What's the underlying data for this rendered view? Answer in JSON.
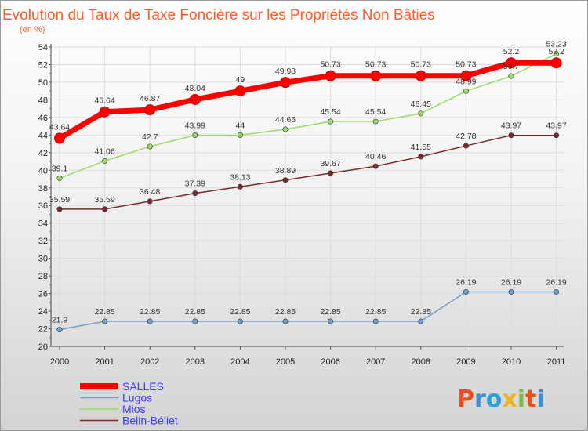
{
  "chart_data": {
    "type": "line",
    "title": "Evolution du Taux de Taxe Foncière sur les Propriétés Non Bâties",
    "subtitle": "(en %)",
    "xlabel": "",
    "ylabel": "",
    "x": [
      "2000",
      "2001",
      "2002",
      "2003",
      "2004",
      "2005",
      "2006",
      "2007",
      "2008",
      "2009",
      "2010",
      "2011"
    ],
    "ylim": [
      20,
      54
    ],
    "yticks": [
      20,
      22,
      24,
      26,
      28,
      30,
      32,
      34,
      36,
      38,
      40,
      42,
      44,
      46,
      48,
      50,
      52,
      54
    ],
    "grid": true,
    "legend_position": "bottom-left",
    "series": [
      {
        "name": "SALLES",
        "color": "#ff0000",
        "values": [
          43.64,
          46.64,
          46.87,
          48.04,
          49,
          49.98,
          50.73,
          50.73,
          50.73,
          50.73,
          52.2,
          52.2
        ],
        "labels": [
          "43.64",
          "46.64",
          "46.87",
          "48.04",
          "49",
          "49.98",
          "50.73",
          "50.73",
          "50.73",
          "50.73",
          "52.2",
          "52.2"
        ]
      },
      {
        "name": "Lugos",
        "color": "#6f9fcf",
        "values": [
          21.9,
          22.85,
          22.85,
          22.85,
          22.85,
          22.85,
          22.85,
          22.85,
          22.85,
          26.19,
          26.19,
          26.19
        ],
        "labels": [
          "21.9",
          "22.85",
          "22.85",
          "22.85",
          "22.85",
          "22.85",
          "22.85",
          "22.85",
          "22.85",
          "26.19",
          "26.19",
          "26.19"
        ]
      },
      {
        "name": "Mios",
        "color": "#99dd66",
        "values": [
          39.1,
          41.06,
          42.7,
          43.99,
          44,
          44.65,
          45.54,
          45.54,
          46.45,
          48.99,
          50.7,
          53.23
        ],
        "labels": [
          "39.1",
          "41.06",
          "42.7",
          "43.99",
          "44",
          "44.65",
          "45.54",
          "45.54",
          "46.45",
          "48.99",
          "50.7",
          "53.23"
        ]
      },
      {
        "name": "Belin-Béliet",
        "color": "#7a2a2a",
        "values": [
          35.59,
          35.59,
          36.48,
          37.39,
          38.13,
          38.89,
          39.67,
          40.46,
          41.55,
          42.78,
          43.97,
          43.97
        ],
        "labels": [
          "35.59",
          "35.59",
          "36.48",
          "37.39",
          "38.13",
          "38.89",
          "39.67",
          "40.46",
          "41.55",
          "42.78",
          "43.97",
          "43.97"
        ]
      }
    ]
  },
  "branding": {
    "logo_text": "Proxiti"
  }
}
